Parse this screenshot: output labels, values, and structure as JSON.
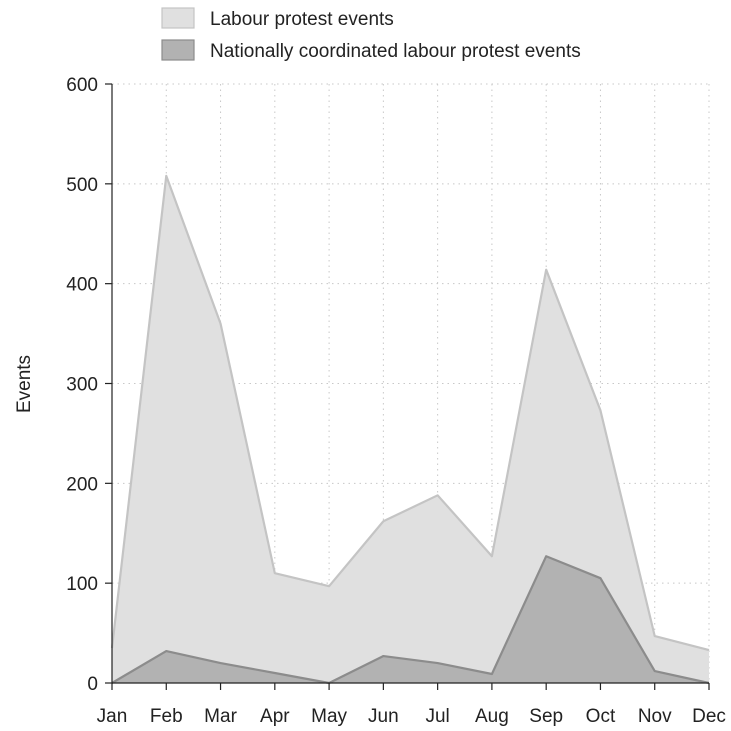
{
  "chart_data": {
    "type": "area",
    "categories": [
      "Jan",
      "Feb",
      "Mar",
      "Apr",
      "May",
      "Jun",
      "Jul",
      "Aug",
      "Sep",
      "Oct",
      "Nov",
      "Dec"
    ],
    "series": [
      {
        "name": "Labour protest events",
        "values": [
          35,
          508,
          360,
          110,
          97,
          162,
          188,
          127,
          414,
          273,
          47,
          33
        ],
        "fill": "#e0e0e0",
        "stroke": "#c4c4c4"
      },
      {
        "name": "Nationally coordinated labour protest events",
        "values": [
          0,
          32,
          20,
          10,
          0,
          27,
          20,
          9,
          127,
          105,
          12,
          0
        ],
        "fill": "#b2b2b2",
        "stroke": "#8c8c8c"
      }
    ],
    "xlabel": "",
    "ylabel": "Events",
    "ylim": [
      0,
      600
    ],
    "yticks": [
      "0",
      "100",
      "200",
      "300",
      "400",
      "500",
      "600"
    ],
    "grid": true,
    "legend_position": "top"
  }
}
